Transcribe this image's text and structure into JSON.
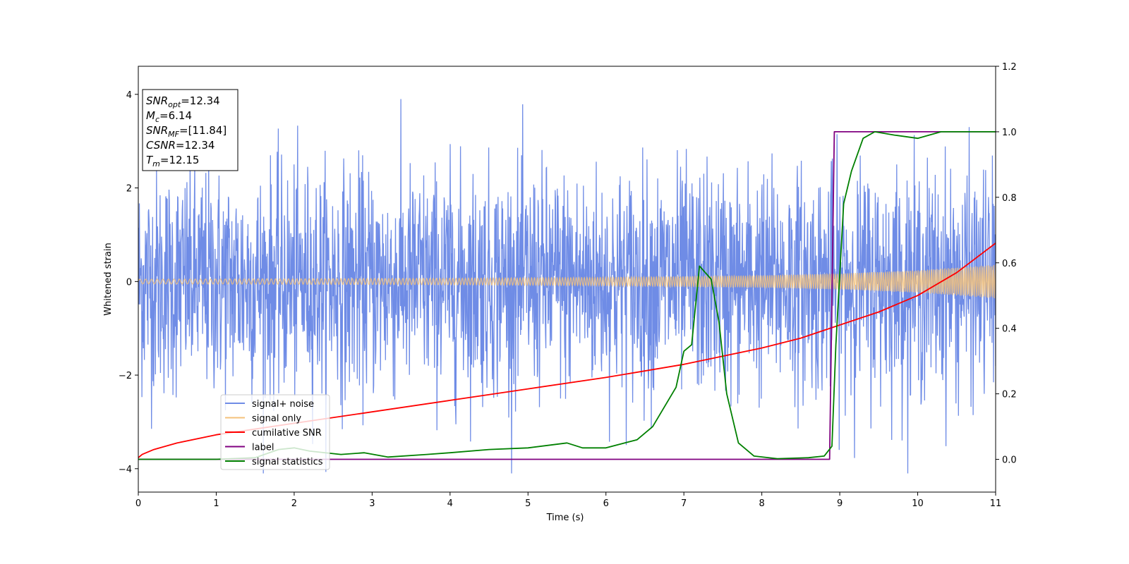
{
  "chart_data": {
    "type": "line",
    "xlabel": "Time (s)",
    "ylabel": "Whitened strain",
    "xlim": [
      0,
      11
    ],
    "ylim": [
      -4.5,
      4.6
    ],
    "y2lim": [
      -0.1,
      1.2
    ],
    "xticks": [
      "0",
      "1",
      "2",
      "3",
      "4",
      "5",
      "6",
      "7",
      "8",
      "9",
      "10",
      "11"
    ],
    "yticks": [
      "−4",
      "−2",
      "0",
      "2",
      "4"
    ],
    "y2ticks": [
      "0.0",
      "0.2",
      "0.4",
      "0.6",
      "0.8",
      "1.0",
      "1.2"
    ],
    "legend_position": "lower-left",
    "info_box": {
      "lines": [
        {
          "sym": "SNR",
          "sub": "opt",
          "val": "=12.34"
        },
        {
          "sym": "M",
          "sub": "c",
          "val": "=6.14"
        },
        {
          "sym": "SNR",
          "sub": "MF",
          "val": "=[11.84]"
        },
        {
          "sym": "CSNR",
          "sub": "",
          "val": "=12.34"
        },
        {
          "sym": "T",
          "sub": "m",
          "val": "=12.15"
        }
      ]
    },
    "series": [
      {
        "name": "signal+ noise",
        "color": "#6f8ce6",
        "axis": "left",
        "description_values": {
          "amplitude_std": 1.2,
          "peak_range": [
            -4.1,
            3.9
          ]
        }
      },
      {
        "name": "signal only",
        "color": "#f5c27a",
        "axis": "left",
        "envelope": {
          "x": [
            0,
            2,
            4,
            6,
            8,
            9,
            10,
            11
          ],
          "amp": [
            0.05,
            0.06,
            0.07,
            0.09,
            0.13,
            0.17,
            0.24,
            0.36
          ]
        }
      },
      {
        "name": "cumilative SNR",
        "color": "#ff0000",
        "axis": "right",
        "x": [
          0,
          0.05,
          0.2,
          0.5,
          1,
          2,
          3,
          4,
          5,
          6,
          7,
          8,
          8.5,
          9,
          9.5,
          10,
          10.5,
          11
        ],
        "y": [
          0.005,
          0.015,
          0.03,
          0.05,
          0.075,
          0.11,
          0.145,
          0.18,
          0.215,
          0.25,
          0.29,
          0.34,
          0.37,
          0.41,
          0.45,
          0.5,
          0.57,
          0.66
        ]
      },
      {
        "name": "label",
        "color": "#800080",
        "axis": "right",
        "x": [
          0,
          8.87,
          8.93,
          11
        ],
        "y": [
          0,
          0,
          1,
          1
        ]
      },
      {
        "name": "signal statistics",
        "color": "#008000",
        "axis": "right",
        "x": [
          0,
          1.0,
          1.5,
          1.8,
          2.0,
          2.2,
          2.6,
          2.9,
          3.2,
          3.7,
          4.0,
          4.5,
          5.0,
          5.5,
          5.7,
          6.0,
          6.4,
          6.6,
          6.9,
          7.0,
          7.1,
          7.2,
          7.35,
          7.45,
          7.55,
          7.7,
          7.9,
          8.2,
          8.6,
          8.8,
          8.9,
          8.95,
          9.05,
          9.15,
          9.3,
          9.45,
          9.7,
          10.0,
          10.3,
          10.7,
          11
        ],
        "y": [
          0,
          0,
          0.005,
          0.03,
          0.035,
          0.025,
          0.015,
          0.02,
          0.007,
          0.015,
          0.02,
          0.03,
          0.035,
          0.05,
          0.035,
          0.035,
          0.06,
          0.1,
          0.22,
          0.33,
          0.35,
          0.59,
          0.55,
          0.42,
          0.2,
          0.05,
          0.01,
          0.002,
          0.005,
          0.01,
          0.04,
          0.35,
          0.78,
          0.88,
          0.98,
          1.0,
          0.99,
          0.98,
          1.0,
          1.0,
          1.0
        ]
      }
    ]
  }
}
